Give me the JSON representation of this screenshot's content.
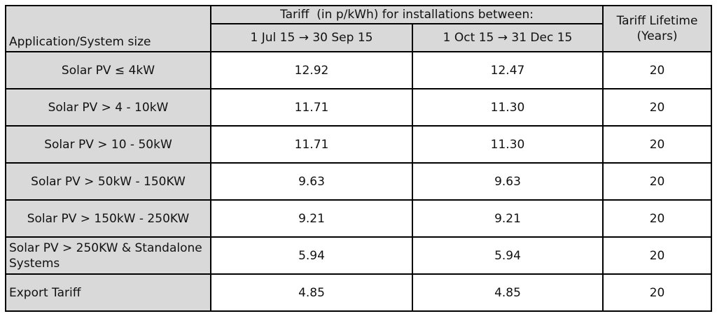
{
  "table": {
    "group_header": "Tariff  (in p/kWh) for installations between:",
    "columns": [
      "Application/System size",
      "1 Jul 15 → 30 Sep 15",
      "1 Oct 15 → 31 Dec 15",
      "Tariff Lifetime (Years)"
    ],
    "rows": [
      [
        "Solar PV ≤ 4kW",
        "12.92",
        "12.47",
        "20"
      ],
      [
        "Solar PV > 4 - 10kW",
        "11.71",
        "11.30",
        "20"
      ],
      [
        "Solar PV > 10 - 50kW",
        "11.71",
        "11.30",
        "20"
      ],
      [
        "Solar PV > 50kW - 150KW",
        "9.63",
        "9.63",
        "20"
      ],
      [
        "Solar PV > 150kW - 250KW",
        "9.21",
        "9.21",
        "20"
      ],
      [
        "Solar PV > 250KW & Standalone Systems",
        "5.94",
        "5.94",
        "20"
      ],
      [
        "Export Tariff",
        "4.85",
        "4.85",
        "20"
      ]
    ]
  }
}
